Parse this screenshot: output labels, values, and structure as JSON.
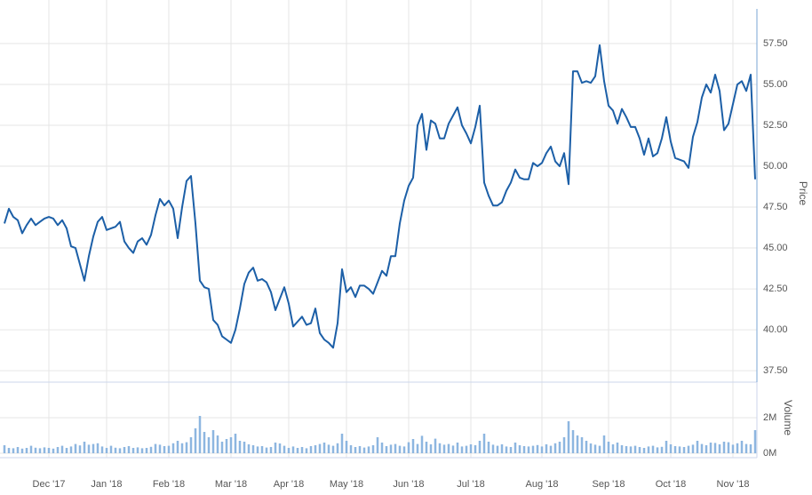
{
  "chart_data": [
    {
      "type": "line",
      "ylabel": "Price",
      "color": "#1c5fa7",
      "ylim": [
        37.07,
        59.62
      ],
      "yticks": [
        {
          "value": 37.5,
          "label": "37.50"
        },
        {
          "value": 40,
          "label": "40.00"
        },
        {
          "value": 42.5,
          "label": "42.50"
        },
        {
          "value": 45,
          "label": "45.00"
        },
        {
          "value": 47.5,
          "label": "47.50"
        },
        {
          "value": 50,
          "label": "50.00"
        },
        {
          "value": 52.5,
          "label": "52.50"
        },
        {
          "value": 55,
          "label": "55.00"
        },
        {
          "value": 57.5,
          "label": "57.50"
        }
      ],
      "grid": true,
      "values": [
        46.5,
        47.4,
        46.9,
        46.7,
        45.9,
        46.4,
        46.8,
        46.4,
        46.6,
        46.8,
        46.9,
        46.8,
        46.4,
        46.7,
        46.2,
        45.1,
        45.0,
        44.0,
        43.0,
        44.5,
        45.7,
        46.6,
        46.9,
        46.1,
        46.2,
        46.3,
        46.6,
        45.4,
        45.0,
        44.7,
        45.4,
        45.6,
        45.2,
        45.8,
        47.0,
        48.0,
        47.6,
        47.9,
        47.4,
        45.6,
        47.5,
        49.1,
        49.4,
        46.5,
        43.0,
        42.6,
        42.5,
        40.6,
        40.3,
        39.6,
        39.4,
        39.2,
        40.0,
        41.3,
        42.8,
        43.5,
        43.8,
        43.0,
        43.1,
        42.9,
        42.3,
        41.2,
        41.9,
        42.6,
        41.6,
        40.2,
        40.5,
        40.8,
        40.3,
        40.4,
        41.3,
        39.8,
        39.4,
        39.2,
        38.9,
        40.4,
        43.7,
        42.3,
        42.6,
        42.0,
        42.7,
        42.7,
        42.5,
        42.2,
        42.9,
        43.6,
        43.3,
        44.5,
        44.5,
        46.5,
        47.9,
        48.8,
        49.3,
        52.5,
        53.2,
        51.0,
        52.8,
        52.6,
        51.7,
        51.7,
        52.6,
        53.1,
        53.6,
        52.5,
        52.0,
        51.4,
        52.4,
        53.7,
        49.0,
        48.2,
        47.6,
        47.6,
        47.8,
        48.5,
        49.0,
        49.8,
        49.3,
        49.2,
        49.2,
        50.2,
        50.0,
        50.2,
        50.8,
        51.2,
        50.3,
        50.0,
        50.8,
        48.9,
        55.8,
        55.8,
        55.1,
        55.2,
        55.1,
        55.5,
        57.4,
        55.2,
        53.7,
        53.4,
        52.6,
        53.5,
        53.0,
        52.4,
        52.4,
        51.7,
        50.7,
        51.7,
        50.6,
        50.8,
        51.7,
        53.0,
        51.5,
        50.5,
        50.4,
        50.3,
        49.9,
        51.8,
        52.7,
        54.2,
        55.0,
        54.5,
        55.6,
        54.6,
        52.2,
        52.6,
        53.8,
        55.0,
        55.2,
        54.6,
        55.6,
        49.2
      ]
    },
    {
      "type": "bar",
      "ylabel": "Volume",
      "color": "#8db6e0",
      "ylim": [
        0,
        4000000
      ],
      "yticks": [
        {
          "value": 0,
          "label": "0M"
        },
        {
          "value": 2000000,
          "label": "2M"
        }
      ],
      "grid": true,
      "categories": [
        null,
        null,
        null,
        null,
        null,
        null,
        null,
        null,
        null,
        null,
        "Dec '17",
        null,
        null,
        null,
        null,
        null,
        null,
        null,
        null,
        null,
        null,
        null,
        null,
        "Jan '18",
        null,
        null,
        null,
        null,
        null,
        null,
        null,
        null,
        null,
        null,
        null,
        null,
        null,
        "Feb '18",
        null,
        null,
        null,
        null,
        null,
        null,
        null,
        null,
        null,
        null,
        null,
        null,
        null,
        "Mar '18",
        null,
        null,
        null,
        null,
        null,
        null,
        null,
        null,
        null,
        null,
        null,
        null,
        "Apr '18",
        null,
        null,
        null,
        null,
        null,
        null,
        null,
        null,
        null,
        null,
        null,
        null,
        "May '18",
        null,
        null,
        null,
        null,
        null,
        null,
        null,
        null,
        null,
        null,
        null,
        null,
        null,
        "Jun '18",
        null,
        null,
        null,
        null,
        null,
        null,
        null,
        null,
        null,
        null,
        null,
        null,
        null,
        "Jul '18",
        null,
        null,
        null,
        null,
        null,
        null,
        null,
        null,
        null,
        null,
        null,
        null,
        null,
        null,
        null,
        "Aug '18",
        null,
        null,
        null,
        null,
        null,
        null,
        null,
        null,
        null,
        null,
        null,
        null,
        null,
        null,
        "Sep '18",
        null,
        null,
        null,
        null,
        null,
        null,
        null,
        null,
        null,
        null,
        null,
        null,
        null,
        "Oct '18",
        null,
        null,
        null,
        null,
        null,
        null,
        null,
        null,
        null,
        null,
        null,
        null,
        null,
        "Nov '18",
        null,
        null,
        null,
        null,
        null
      ],
      "values": [
        450000,
        300000,
        280000,
        350000,
        260000,
        300000,
        420000,
        310000,
        280000,
        330000,
        300000,
        260000,
        350000,
        420000,
        300000,
        380000,
        520000,
        440000,
        650000,
        480000,
        520000,
        560000,
        380000,
        300000,
        420000,
        310000,
        280000,
        350000,
        400000,
        300000,
        330000,
        280000,
        300000,
        360000,
        520000,
        480000,
        400000,
        420000,
        560000,
        700000,
        560000,
        620000,
        900000,
        1400000,
        2100000,
        1200000,
        900000,
        1300000,
        1000000,
        650000,
        800000,
        900000,
        1100000,
        700000,
        650000,
        500000,
        450000,
        380000,
        400000,
        320000,
        350000,
        600000,
        550000,
        420000,
        300000,
        380000,
        300000,
        350000,
        280000,
        400000,
        450000,
        520000,
        600000,
        480000,
        420000,
        560000,
        1100000,
        700000,
        450000,
        350000,
        400000,
        320000,
        380000,
        450000,
        900000,
        600000,
        400000,
        480000,
        520000,
        420000,
        380000,
        620000,
        800000,
        520000,
        980000,
        650000,
        500000,
        820000,
        560000,
        480000,
        520000,
        430000,
        600000,
        380000,
        420000,
        500000,
        450000,
        700000,
        1100000,
        650000,
        480000,
        420000,
        500000,
        380000,
        350000,
        600000,
        450000,
        400000,
        380000,
        420000,
        460000,
        380000,
        500000,
        420000,
        560000,
        650000,
        900000,
        1800000,
        1300000,
        1000000,
        900000,
        700000,
        550000,
        480000,
        420000,
        1000000,
        650000,
        500000,
        600000,
        450000,
        400000,
        380000,
        420000,
        350000,
        300000,
        380000,
        420000,
        330000,
        360000,
        700000,
        500000,
        400000,
        380000,
        350000,
        420000,
        480000,
        700000,
        520000,
        450000,
        600000,
        580000,
        500000,
        650000,
        620000,
        480000,
        560000,
        700000,
        520000,
        500000,
        1300000
      ]
    }
  ]
}
